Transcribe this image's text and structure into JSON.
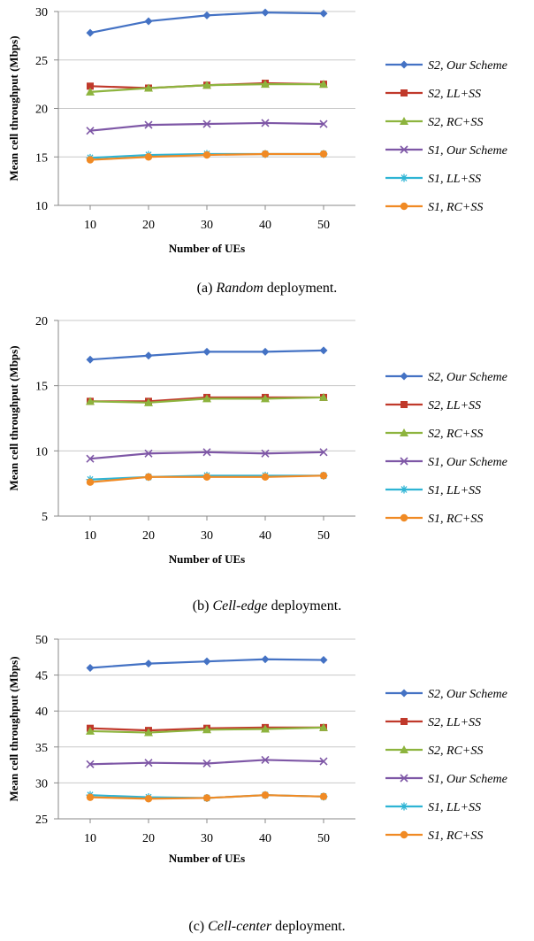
{
  "chart_data": [
    {
      "type": "line",
      "caption": {
        "prefix": "(a) ",
        "emphasis": "Random",
        "suffix": " deployment."
      },
      "xlabel": "Number of UEs",
      "ylabel": "Mean cell throughput (Mbps)",
      "x": [
        10,
        20,
        30,
        40,
        50
      ],
      "ylim": [
        10,
        30
      ],
      "yticks": [
        10,
        15,
        20,
        25,
        30
      ],
      "grid": true,
      "legend": "right",
      "series": [
        {
          "name": "S2, Our Scheme",
          "color": "#4472C4",
          "marker": "diamond",
          "values": [
            27.8,
            29.0,
            29.6,
            29.9,
            29.8
          ]
        },
        {
          "name": "S2, LL+SS",
          "color": "#C0392B",
          "marker": "square",
          "values": [
            22.3,
            22.1,
            22.4,
            22.6,
            22.5
          ]
        },
        {
          "name": "S2, RC+SS",
          "color": "#8DB43E",
          "marker": "triangle",
          "values": [
            21.7,
            22.1,
            22.4,
            22.5,
            22.5
          ]
        },
        {
          "name": "S1, Our Scheme",
          "color": "#7E57A6",
          "marker": "x",
          "values": [
            17.7,
            18.3,
            18.4,
            18.5,
            18.4
          ]
        },
        {
          "name": "S1, LL+SS",
          "color": "#2EB4D4",
          "marker": "star",
          "values": [
            14.9,
            15.2,
            15.3,
            15.3,
            15.3
          ]
        },
        {
          "name": "S1, RC+SS",
          "color": "#F08A24",
          "marker": "circle",
          "values": [
            14.7,
            15.0,
            15.2,
            15.3,
            15.3
          ]
        }
      ]
    },
    {
      "type": "line",
      "caption": {
        "prefix": "(b) ",
        "emphasis": "Cell-edge",
        "suffix": " deployment."
      },
      "xlabel": "Number of UEs",
      "ylabel": "Mean cell throughput (Mbps)",
      "x": [
        10,
        20,
        30,
        40,
        50
      ],
      "ylim": [
        5,
        20
      ],
      "yticks": [
        5,
        10,
        15,
        20
      ],
      "grid": true,
      "legend": "right",
      "series": [
        {
          "name": "S2, Our Scheme",
          "color": "#4472C4",
          "marker": "diamond",
          "values": [
            17.0,
            17.3,
            17.6,
            17.6,
            17.7
          ]
        },
        {
          "name": "S2, LL+SS",
          "color": "#C0392B",
          "marker": "square",
          "values": [
            13.8,
            13.8,
            14.1,
            14.1,
            14.1
          ]
        },
        {
          "name": "S2, RC+SS",
          "color": "#8DB43E",
          "marker": "triangle",
          "values": [
            13.8,
            13.7,
            14.0,
            14.0,
            14.1
          ]
        },
        {
          "name": "S1, Our Scheme",
          "color": "#7E57A6",
          "marker": "x",
          "values": [
            9.4,
            9.8,
            9.9,
            9.8,
            9.9
          ]
        },
        {
          "name": "S1, LL+SS",
          "color": "#2EB4D4",
          "marker": "star",
          "values": [
            7.8,
            8.0,
            8.1,
            8.1,
            8.1
          ]
        },
        {
          "name": "S1, RC+SS",
          "color": "#F08A24",
          "marker": "circle",
          "values": [
            7.6,
            8.0,
            8.0,
            8.0,
            8.1
          ]
        }
      ]
    },
    {
      "type": "line",
      "caption": {
        "prefix": "(c) ",
        "emphasis": "Cell-center",
        "suffix": " deployment."
      },
      "xlabel": "Number of UEs",
      "ylabel": "Mean cell throughput (Mbps)",
      "x": [
        10,
        20,
        30,
        40,
        50
      ],
      "ylim": [
        25,
        50
      ],
      "yticks": [
        25,
        30,
        35,
        40,
        45,
        50
      ],
      "grid": true,
      "legend": "right",
      "series": [
        {
          "name": "S2, Our Scheme",
          "color": "#4472C4",
          "marker": "diamond",
          "values": [
            46.0,
            46.6,
            46.9,
            47.2,
            47.1
          ]
        },
        {
          "name": "S2, LL+SS",
          "color": "#C0392B",
          "marker": "square",
          "values": [
            37.6,
            37.3,
            37.6,
            37.7,
            37.7
          ]
        },
        {
          "name": "S2, RC+SS",
          "color": "#8DB43E",
          "marker": "triangle",
          "values": [
            37.2,
            37.0,
            37.4,
            37.5,
            37.7
          ]
        },
        {
          "name": "S1, Our Scheme",
          "color": "#7E57A6",
          "marker": "x",
          "values": [
            32.6,
            32.8,
            32.7,
            33.2,
            33.0
          ]
        },
        {
          "name": "S1, LL+SS",
          "color": "#2EB4D4",
          "marker": "star",
          "values": [
            28.3,
            28.0,
            27.9,
            28.3,
            28.1
          ]
        },
        {
          "name": "S1, RC+SS",
          "color": "#F08A24",
          "marker": "circle",
          "values": [
            28.0,
            27.8,
            27.9,
            28.3,
            28.1
          ]
        }
      ]
    }
  ]
}
